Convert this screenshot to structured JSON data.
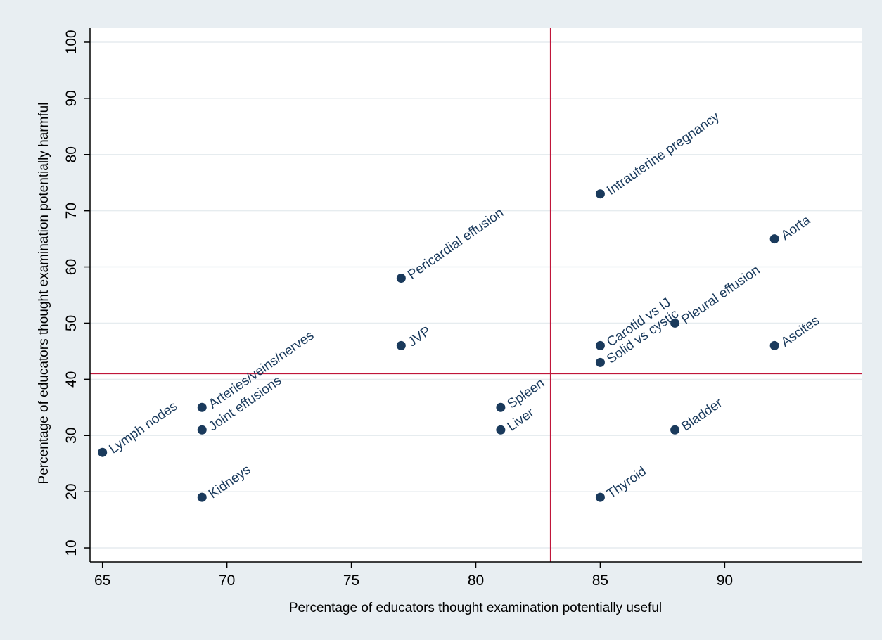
{
  "chart_data": {
    "type": "scatter",
    "title": "",
    "xlabel": "Percentage of educators thought examination potentially useful",
    "ylabel": "Percentage of educators thought examination potentially harmful",
    "xlim": [
      64.5,
      95.5
    ],
    "ylim": [
      7.5,
      102.5
    ],
    "xticks": [
      "65",
      "70",
      "75",
      "80",
      "85",
      "90"
    ],
    "yticks": [
      "10",
      "20",
      "30",
      "40",
      "50",
      "60",
      "70",
      "80",
      "90",
      "100"
    ],
    "grid": true,
    "reference_lines": {
      "x": 83,
      "y": 41
    },
    "points": [
      {
        "label": "Lymph nodes",
        "x": 65,
        "y": 27
      },
      {
        "label": "Arteries/veins/nerves",
        "x": 69,
        "y": 35
      },
      {
        "label": "Joint effusions",
        "x": 69,
        "y": 31
      },
      {
        "label": "Kidneys",
        "x": 69,
        "y": 19
      },
      {
        "label": "Pericardial effusion",
        "x": 77,
        "y": 58
      },
      {
        "label": "JVP",
        "x": 77,
        "y": 46
      },
      {
        "label": "Spleen",
        "x": 81,
        "y": 35
      },
      {
        "label": "Liver",
        "x": 81,
        "y": 31
      },
      {
        "label": "Intrauterine pregnancy",
        "x": 85,
        "y": 73
      },
      {
        "label": "Carotid vs IJ",
        "x": 85,
        "y": 46
      },
      {
        "label": "Solid vs cystic",
        "x": 85,
        "y": 43
      },
      {
        "label": "Thyroid",
        "x": 85,
        "y": 19
      },
      {
        "label": "Pleural effusion",
        "x": 88,
        "y": 50
      },
      {
        "label": "Bladder",
        "x": 88,
        "y": 31
      },
      {
        "label": "Aorta",
        "x": 92,
        "y": 65
      },
      {
        "label": "Ascites",
        "x": 92,
        "y": 46
      }
    ],
    "colors": {
      "outer_background": "#e8eef2",
      "plot_background": "#ffffff",
      "grid": "#e6ecef",
      "axis": "#000000",
      "marker": "#1a3a5c",
      "label": "#1a3a5c",
      "reference_line": "#c0163a"
    }
  }
}
